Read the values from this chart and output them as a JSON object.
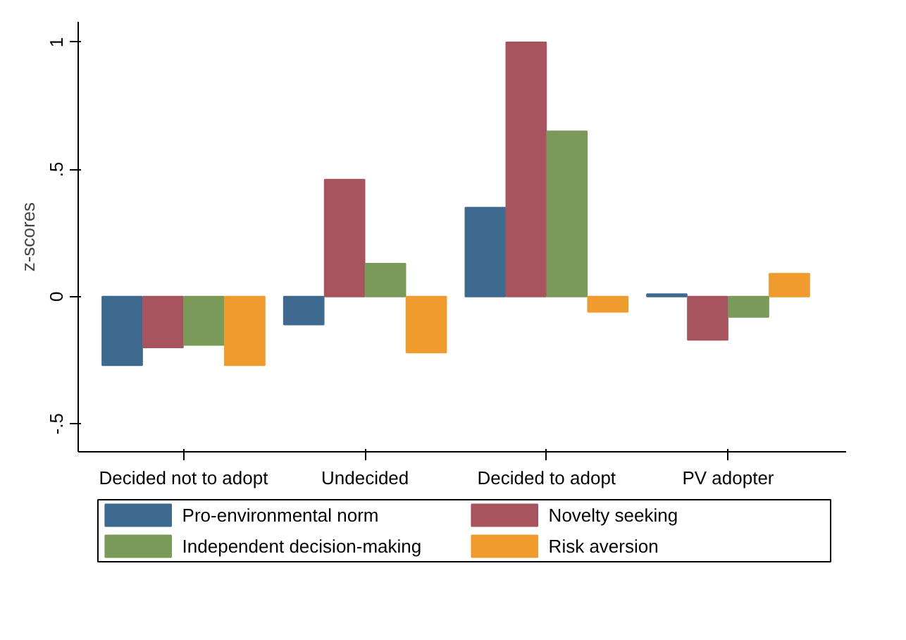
{
  "chart_data": {
    "type": "bar",
    "ylabel": "z-scores",
    "categories": [
      "Decided not to adopt",
      "Undecided",
      "Decided to adopt",
      "PV adopter"
    ],
    "series": [
      {
        "name": "Pro-environmental norm",
        "color": "#3d6a8e",
        "values": [
          -0.27,
          -0.11,
          0.35,
          0.01
        ]
      },
      {
        "name": "Novelty seeking",
        "color": "#a8545e",
        "values": [
          -0.2,
          0.46,
          1.0,
          -0.17
        ]
      },
      {
        "name": "Independent decision-making",
        "color": "#7a9a59",
        "values": [
          -0.19,
          0.13,
          0.65,
          -0.08
        ]
      },
      {
        "name": "Risk aversion",
        "color": "#ef9b2d",
        "values": [
          -0.27,
          -0.22,
          -0.06,
          0.09
        ]
      }
    ],
    "ylim": [
      -0.61,
      1.08
    ],
    "yticks": [
      {
        "value": -0.5,
        "label": "-.5"
      },
      0,
      {
        "value": 0.5,
        "label": ".5"
      },
      1
    ],
    "grid": false,
    "legend": "bottom"
  }
}
